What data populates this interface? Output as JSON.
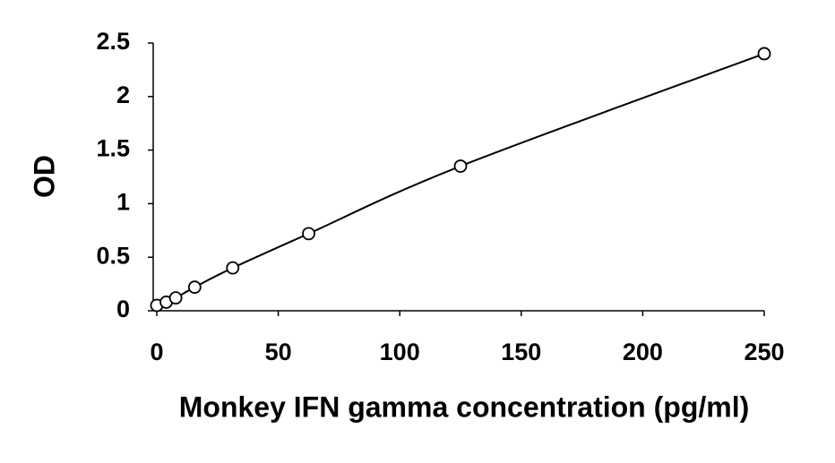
{
  "chart_data": {
    "type": "scatter",
    "x_label": "Monkey IFN gamma concentration (pg/ml)",
    "y_label": "OD",
    "x": [
      0,
      3.9,
      7.8,
      15.6,
      31.25,
      62.5,
      125,
      250
    ],
    "values": [
      0.05,
      0.08,
      0.12,
      0.22,
      0.4,
      0.72,
      1.35,
      2.4
    ],
    "color": "#000000",
    "trendline": true,
    "xlim": [
      0,
      250
    ],
    "xticks": [
      0,
      50,
      100,
      150,
      200,
      250
    ],
    "ylim": [
      0,
      2.5
    ],
    "yticks": [
      0,
      0.5,
      1,
      1.5,
      2,
      2.5
    ],
    "grid": false
  }
}
